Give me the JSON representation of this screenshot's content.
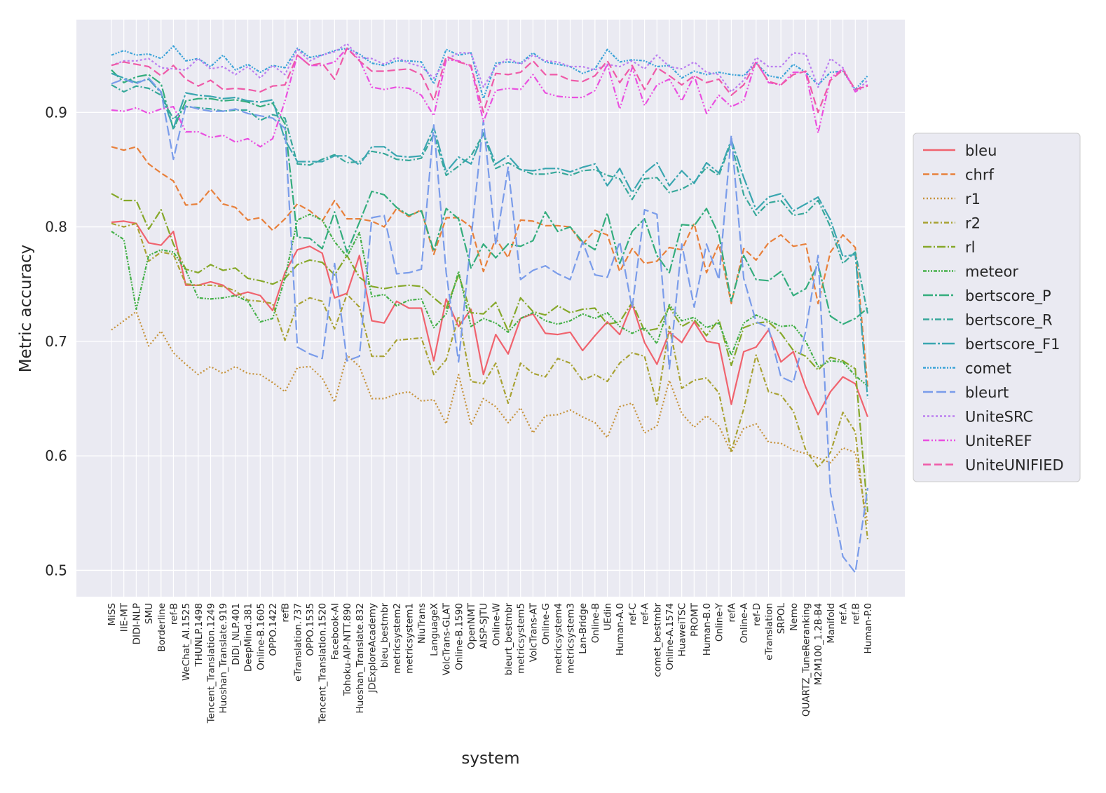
{
  "chart_data": {
    "type": "line",
    "title": "",
    "xlabel": "system",
    "ylabel": "Metric accuracy",
    "ylim": [
      0.477,
      0.981
    ],
    "yticks": [
      0.5,
      0.6,
      0.7,
      0.8,
      0.9
    ],
    "ytick_labels": [
      "0.5",
      "0.6",
      "0.7",
      "0.8",
      "0.9"
    ],
    "grid": true,
    "legend_position": "right",
    "background": "#eaeaf2",
    "categories": [
      "MiSS",
      "IIE-MT",
      "DIDI-NLP",
      "SMU",
      "Borderline",
      "ref-B",
      "WeChat_AI.1525",
      "THUNLP.1498",
      "Tencent_Translation.1249",
      "Huoshan_Translate.919",
      "DiDi_NLP.401",
      "DeepMind.381",
      "Online-B.1605",
      "OPPO.1422",
      "refB",
      "eTranslation.737",
      "OPPO.1535",
      "Tencent_Translation.1520",
      "Facebook-AI",
      "Tohoku-AIP-NTT.890",
      "Huoshan_Translate.832",
      "JDExploreAcademy",
      "bleu_bestmbr",
      "metricsystem2",
      "metricsystem1",
      "NiuTrans",
      "LanguageX",
      "VolcTrans-GLAT",
      "Online-B.1590",
      "OpenNMT",
      "AISP-SJTU",
      "Online-W",
      "bleurt_bestmbr",
      "metricsystem5",
      "VolcTrans-AT",
      "Online-G",
      "metricsystem4",
      "metricsystem3",
      "Lan-Bridge",
      "Online-B",
      "UEdin",
      "Human-A.0",
      "ref-C",
      "ref-A",
      "comet_bestmbr",
      "Online-A.1574",
      "HuaweiTSC",
      "PROMT",
      "Human-B.0",
      "Online-Y",
      "refA",
      "Online-A",
      "ref-D",
      "eTranslation",
      "SRPOL",
      "Nemo",
      "QUARTZ_TuneReranking",
      "M2M100_1.2B-B4",
      "Manifold",
      "ref.A",
      "ref.B",
      "Human-P.0"
    ],
    "series": [
      {
        "name": "bleu",
        "color": "#f0636e",
        "dash": "solid",
        "values": [
          0.804,
          0.805,
          0.803,
          0.786,
          0.784,
          0.796,
          0.749,
          0.749,
          0.752,
          0.749,
          0.74,
          0.743,
          0.74,
          0.727,
          0.76,
          0.78,
          0.783,
          0.777,
          0.738,
          0.742,
          0.775,
          0.718,
          0.716,
          0.735,
          0.729,
          0.729,
          0.683,
          0.737,
          0.713,
          0.728,
          0.671,
          0.706,
          0.689,
          0.72,
          0.724,
          0.707,
          0.706,
          0.708,
          0.692,
          0.705,
          0.717,
          0.706,
          0.733,
          0.699,
          0.68,
          0.708,
          0.699,
          0.717,
          0.7,
          0.698,
          0.645,
          0.691,
          0.695,
          0.71,
          0.682,
          0.691,
          0.66,
          0.636,
          0.656,
          0.669,
          0.663,
          0.634
        ]
      },
      {
        "name": "chrf",
        "color": "#e8803b",
        "dash": "9,4",
        "values": [
          0.87,
          0.867,
          0.87,
          0.855,
          0.847,
          0.84,
          0.819,
          0.82,
          0.833,
          0.82,
          0.817,
          0.806,
          0.808,
          0.797,
          0.807,
          0.82,
          0.814,
          0.805,
          0.823,
          0.807,
          0.807,
          0.805,
          0.8,
          0.816,
          0.809,
          0.815,
          0.776,
          0.808,
          0.808,
          0.8,
          0.761,
          0.79,
          0.773,
          0.806,
          0.805,
          0.801,
          0.801,
          0.8,
          0.785,
          0.797,
          0.793,
          0.761,
          0.781,
          0.768,
          0.77,
          0.782,
          0.78,
          0.803,
          0.76,
          0.785,
          0.733,
          0.781,
          0.771,
          0.786,
          0.793,
          0.783,
          0.785,
          0.733,
          0.778,
          0.793,
          0.782,
          0.66
        ]
      },
      {
        "name": "r1",
        "color": "#c6923a",
        "dash": "2,3",
        "values": [
          0.71,
          0.718,
          0.726,
          0.696,
          0.709,
          0.69,
          0.68,
          0.671,
          0.678,
          0.672,
          0.678,
          0.672,
          0.671,
          0.664,
          0.656,
          0.677,
          0.678,
          0.668,
          0.647,
          0.688,
          0.678,
          0.65,
          0.65,
          0.654,
          0.656,
          0.648,
          0.649,
          0.628,
          0.671,
          0.627,
          0.65,
          0.643,
          0.629,
          0.642,
          0.62,
          0.635,
          0.636,
          0.64,
          0.634,
          0.629,
          0.616,
          0.643,
          0.646,
          0.62,
          0.626,
          0.666,
          0.637,
          0.625,
          0.635,
          0.626,
          0.603,
          0.624,
          0.628,
          0.612,
          0.611,
          0.605,
          0.602,
          0.598,
          0.594,
          0.607,
          0.603,
          0.541
        ]
      },
      {
        "name": "r2",
        "color": "#a8a233",
        "dash": "7,3,2,3",
        "values": [
          0.803,
          0.8,
          0.803,
          0.77,
          0.778,
          0.776,
          0.75,
          0.749,
          0.749,
          0.748,
          0.744,
          0.736,
          0.735,
          0.733,
          0.701,
          0.732,
          0.738,
          0.735,
          0.711,
          0.741,
          0.73,
          0.687,
          0.687,
          0.701,
          0.702,
          0.703,
          0.671,
          0.684,
          0.722,
          0.665,
          0.663,
          0.681,
          0.646,
          0.681,
          0.672,
          0.669,
          0.685,
          0.681,
          0.666,
          0.671,
          0.665,
          0.681,
          0.69,
          0.687,
          0.645,
          0.713,
          0.659,
          0.666,
          0.668,
          0.655,
          0.604,
          0.641,
          0.688,
          0.656,
          0.653,
          0.639,
          0.605,
          0.59,
          0.603,
          0.638,
          0.621,
          0.527
        ]
      },
      {
        "name": "rl",
        "color": "#86a82a",
        "dash": "12,3,2,3",
        "values": [
          0.829,
          0.823,
          0.823,
          0.798,
          0.815,
          0.785,
          0.763,
          0.76,
          0.767,
          0.762,
          0.764,
          0.755,
          0.753,
          0.75,
          0.755,
          0.767,
          0.771,
          0.769,
          0.758,
          0.775,
          0.756,
          0.748,
          0.746,
          0.748,
          0.749,
          0.748,
          0.738,
          0.729,
          0.758,
          0.725,
          0.724,
          0.734,
          0.709,
          0.738,
          0.726,
          0.723,
          0.731,
          0.725,
          0.728,
          0.729,
          0.715,
          0.717,
          0.734,
          0.709,
          0.711,
          0.73,
          0.713,
          0.719,
          0.705,
          0.719,
          0.679,
          0.712,
          0.716,
          0.717,
          0.707,
          0.692,
          0.687,
          0.675,
          0.686,
          0.683,
          0.676,
          0.551
        ]
      },
      {
        "name": "meteor",
        "color": "#44b048",
        "dash": "5,2,2,2,2,2",
        "values": [
          0.796,
          0.789,
          0.728,
          0.775,
          0.78,
          0.778,
          0.762,
          0.738,
          0.737,
          0.738,
          0.74,
          0.735,
          0.717,
          0.72,
          0.755,
          0.806,
          0.811,
          0.806,
          0.787,
          0.774,
          0.795,
          0.739,
          0.741,
          0.731,
          0.736,
          0.737,
          0.712,
          0.724,
          0.761,
          0.713,
          0.72,
          0.716,
          0.708,
          0.72,
          0.725,
          0.718,
          0.715,
          0.718,
          0.724,
          0.72,
          0.725,
          0.713,
          0.707,
          0.712,
          0.698,
          0.732,
          0.718,
          0.721,
          0.712,
          0.716,
          0.688,
          0.716,
          0.723,
          0.718,
          0.713,
          0.714,
          0.7,
          0.678,
          0.683,
          0.682,
          0.67,
          0.661
        ]
      },
      {
        "name": "bertscore_P",
        "color": "#34ad7d",
        "dash": "14,3,3,3",
        "values": [
          0.937,
          0.926,
          0.931,
          0.933,
          0.925,
          0.885,
          0.91,
          0.912,
          0.912,
          0.91,
          0.911,
          0.909,
          0.905,
          0.908,
          0.89,
          0.791,
          0.79,
          0.781,
          0.813,
          0.778,
          0.804,
          0.831,
          0.828,
          0.817,
          0.81,
          0.814,
          0.779,
          0.816,
          0.807,
          0.764,
          0.785,
          0.773,
          0.785,
          0.783,
          0.788,
          0.813,
          0.796,
          0.8,
          0.787,
          0.78,
          0.812,
          0.768,
          0.796,
          0.807,
          0.775,
          0.76,
          0.802,
          0.801,
          0.816,
          0.793,
          0.735,
          0.775,
          0.754,
          0.753,
          0.761,
          0.74,
          0.746,
          0.767,
          0.722,
          0.715,
          0.72,
          0.729
        ]
      },
      {
        "name": "bertscore_R",
        "color": "#37a89a",
        "dash": "9,3,2,3",
        "values": [
          0.924,
          0.918,
          0.923,
          0.921,
          0.915,
          0.894,
          0.905,
          0.904,
          0.903,
          0.901,
          0.902,
          0.902,
          0.893,
          0.898,
          0.895,
          0.855,
          0.854,
          0.859,
          0.863,
          0.856,
          0.857,
          0.866,
          0.864,
          0.859,
          0.858,
          0.86,
          0.881,
          0.845,
          0.853,
          0.862,
          0.881,
          0.851,
          0.856,
          0.85,
          0.846,
          0.846,
          0.848,
          0.845,
          0.849,
          0.85,
          0.845,
          0.842,
          0.824,
          0.842,
          0.843,
          0.83,
          0.833,
          0.839,
          0.852,
          0.845,
          0.874,
          0.828,
          0.81,
          0.821,
          0.823,
          0.81,
          0.812,
          0.823,
          0.8,
          0.768,
          0.778,
          0.724
        ]
      },
      {
        "name": "bertscore_F1",
        "color": "#3aa6b0",
        "dash": "18,3,3,3",
        "values": [
          0.934,
          0.93,
          0.926,
          0.929,
          0.917,
          0.886,
          0.917,
          0.915,
          0.914,
          0.912,
          0.913,
          0.91,
          0.909,
          0.911,
          0.876,
          0.857,
          0.857,
          0.857,
          0.862,
          0.862,
          0.854,
          0.87,
          0.87,
          0.862,
          0.861,
          0.862,
          0.887,
          0.848,
          0.861,
          0.855,
          0.882,
          0.855,
          0.862,
          0.85,
          0.849,
          0.851,
          0.851,
          0.848,
          0.852,
          0.855,
          0.836,
          0.851,
          0.83,
          0.847,
          0.856,
          0.836,
          0.849,
          0.838,
          0.856,
          0.847,
          0.876,
          0.843,
          0.815,
          0.826,
          0.829,
          0.814,
          0.82,
          0.826,
          0.806,
          0.774,
          0.776,
          0.65
        ]
      },
      {
        "name": "comet",
        "color": "#3ba3d8",
        "dash": "4,2,2,2,2,2",
        "values": [
          0.95,
          0.954,
          0.95,
          0.951,
          0.947,
          0.958,
          0.945,
          0.947,
          0.94,
          0.95,
          0.937,
          0.942,
          0.935,
          0.941,
          0.939,
          0.956,
          0.948,
          0.95,
          0.954,
          0.956,
          0.951,
          0.943,
          0.941,
          0.945,
          0.945,
          0.944,
          0.925,
          0.955,
          0.95,
          0.952,
          0.912,
          0.943,
          0.944,
          0.943,
          0.952,
          0.944,
          0.942,
          0.94,
          0.934,
          0.938,
          0.955,
          0.944,
          0.946,
          0.945,
          0.94,
          0.941,
          0.93,
          0.936,
          0.933,
          0.935,
          0.933,
          0.932,
          0.943,
          0.932,
          0.93,
          0.942,
          0.935,
          0.924,
          0.935,
          0.936,
          0.92,
          0.932
        ]
      },
      {
        "name": "bleurt",
        "color": "#7a9cea",
        "dash": "14,5",
        "values": [
          0.925,
          0.929,
          0.925,
          0.93,
          0.918,
          0.859,
          0.906,
          0.903,
          0.901,
          0.901,
          0.903,
          0.899,
          0.897,
          0.895,
          0.886,
          0.695,
          0.689,
          0.685,
          0.768,
          0.683,
          0.687,
          0.808,
          0.81,
          0.759,
          0.76,
          0.763,
          0.889,
          0.76,
          0.682,
          0.789,
          0.893,
          0.784,
          0.852,
          0.754,
          0.762,
          0.766,
          0.759,
          0.754,
          0.787,
          0.758,
          0.756,
          0.787,
          0.729,
          0.815,
          0.811,
          0.676,
          0.785,
          0.73,
          0.785,
          0.754,
          0.88,
          0.755,
          0.717,
          0.712,
          0.669,
          0.664,
          0.709,
          0.775,
          0.568,
          0.512,
          0.498,
          0.572
        ]
      },
      {
        "name": "UniteSRC",
        "color": "#bb7ef0",
        "dash": "3,3",
        "values": [
          0.941,
          0.945,
          0.945,
          0.947,
          0.939,
          0.938,
          0.937,
          0.947,
          0.938,
          0.94,
          0.933,
          0.94,
          0.93,
          0.941,
          0.933,
          0.955,
          0.945,
          0.95,
          0.953,
          0.96,
          0.948,
          0.947,
          0.942,
          0.948,
          0.943,
          0.94,
          0.93,
          0.946,
          0.952,
          0.952,
          0.922,
          0.94,
          0.947,
          0.942,
          0.95,
          0.945,
          0.944,
          0.94,
          0.94,
          0.937,
          0.942,
          0.94,
          0.945,
          0.938,
          0.95,
          0.94,
          0.938,
          0.944,
          0.935,
          0.933,
          0.918,
          0.928,
          0.948,
          0.94,
          0.94,
          0.952,
          0.951,
          0.922,
          0.947,
          0.939,
          0.918,
          0.928
        ]
      },
      {
        "name": "UniteREF",
        "color": "#ea4fe0",
        "dash": "9,3,2,3,2,3",
        "values": [
          0.902,
          0.901,
          0.904,
          0.899,
          0.903,
          0.905,
          0.883,
          0.883,
          0.878,
          0.88,
          0.874,
          0.877,
          0.87,
          0.877,
          0.91,
          0.95,
          0.941,
          0.941,
          0.944,
          0.956,
          0.946,
          0.922,
          0.92,
          0.922,
          0.921,
          0.915,
          0.897,
          0.946,
          0.945,
          0.94,
          0.892,
          0.919,
          0.921,
          0.92,
          0.933,
          0.917,
          0.914,
          0.913,
          0.913,
          0.919,
          0.942,
          0.903,
          0.939,
          0.906,
          0.924,
          0.929,
          0.91,
          0.932,
          0.899,
          0.915,
          0.905,
          0.91,
          0.945,
          0.926,
          0.924,
          0.935,
          0.935,
          0.882,
          0.93,
          0.938,
          0.918,
          0.924
        ]
      },
      {
        "name": "UniteUNIFIED",
        "color": "#ef5aa8",
        "dash": "11,5",
        "values": [
          0.941,
          0.944,
          0.942,
          0.94,
          0.932,
          0.941,
          0.929,
          0.923,
          0.928,
          0.92,
          0.921,
          0.92,
          0.918,
          0.923,
          0.924,
          0.95,
          0.941,
          0.943,
          0.929,
          0.956,
          0.945,
          0.936,
          0.936,
          0.937,
          0.938,
          0.933,
          0.91,
          0.949,
          0.944,
          0.941,
          0.9,
          0.934,
          0.933,
          0.935,
          0.945,
          0.933,
          0.933,
          0.928,
          0.927,
          0.932,
          0.945,
          0.926,
          0.941,
          0.92,
          0.939,
          0.932,
          0.924,
          0.932,
          0.926,
          0.929,
          0.915,
          0.924,
          0.944,
          0.927,
          0.924,
          0.933,
          0.936,
          0.9,
          0.928,
          0.937,
          0.92,
          0.923
        ]
      }
    ]
  }
}
